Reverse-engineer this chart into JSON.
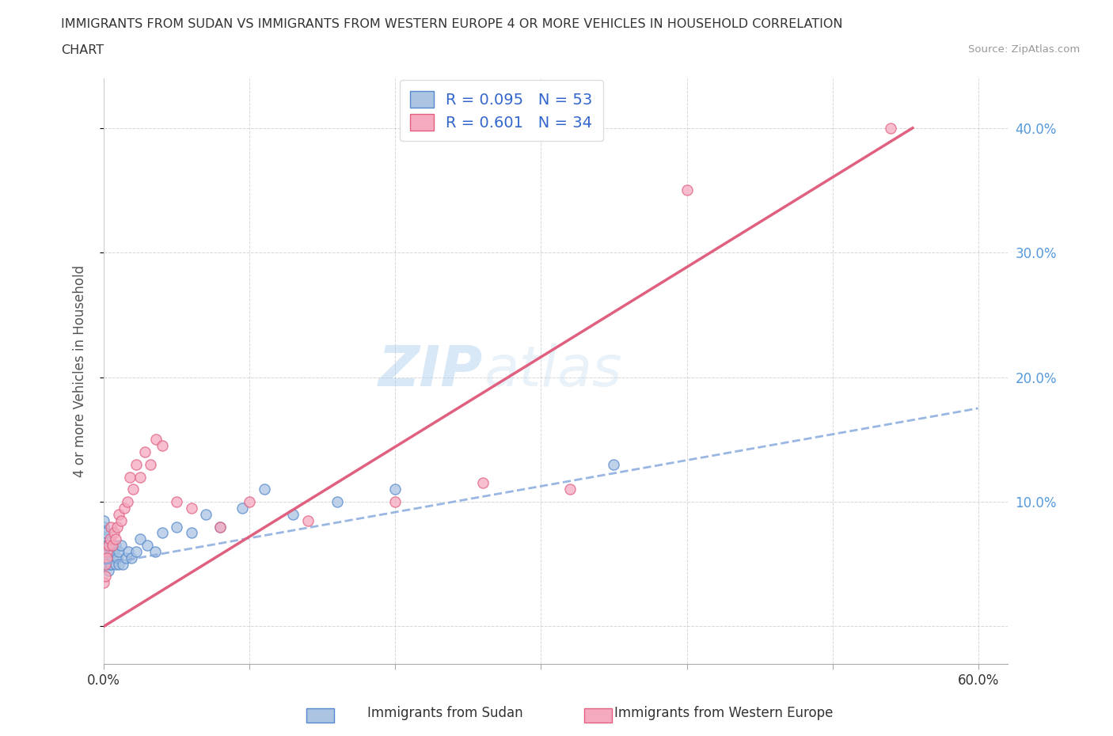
{
  "title_line1": "IMMIGRANTS FROM SUDAN VS IMMIGRANTS FROM WESTERN EUROPE 4 OR MORE VEHICLES IN HOUSEHOLD CORRELATION",
  "title_line2": "CHART",
  "source": "Source: ZipAtlas.com",
  "ylabel": "4 or more Vehicles in Household",
  "xlim": [
    0.0,
    0.62
  ],
  "ylim": [
    -0.03,
    0.44
  ],
  "x_ticks": [
    0.0,
    0.1,
    0.2,
    0.3,
    0.4,
    0.5,
    0.6
  ],
  "x_tick_labels": [
    "0.0%",
    "",
    "",
    "",
    "",
    "",
    "60.0%"
  ],
  "y_ticks": [
    0.0,
    0.1,
    0.2,
    0.3,
    0.4
  ],
  "y_tick_labels_right": [
    "",
    "10.0%",
    "20.0%",
    "30.0%",
    "40.0%"
  ],
  "R_sudan": 0.095,
  "N_sudan": 53,
  "R_western_europe": 0.601,
  "N_western_europe": 34,
  "sudan_color": "#aac4e2",
  "western_europe_color": "#f5aabf",
  "sudan_edge_color": "#5588cc",
  "western_europe_edge_color": "#e06080",
  "sudan_line_color": "#88aadd",
  "western_europe_line_color": "#e06080",
  "sudan_scatter_x": [
    0.0,
    0.0,
    0.0,
    0.0,
    0.0,
    0.0,
    0.0,
    0.0,
    0.001,
    0.001,
    0.001,
    0.001,
    0.001,
    0.001,
    0.002,
    0.002,
    0.002,
    0.002,
    0.003,
    0.003,
    0.003,
    0.004,
    0.004,
    0.005,
    0.005,
    0.006,
    0.006,
    0.007,
    0.008,
    0.008,
    0.009,
    0.01,
    0.01,
    0.012,
    0.013,
    0.015,
    0.017,
    0.019,
    0.022,
    0.025,
    0.03,
    0.035,
    0.04,
    0.05,
    0.06,
    0.07,
    0.08,
    0.095,
    0.11,
    0.13,
    0.16,
    0.2,
    0.35
  ],
  "sudan_scatter_y": [
    0.05,
    0.06,
    0.065,
    0.07,
    0.075,
    0.08,
    0.08,
    0.085,
    0.05,
    0.055,
    0.06,
    0.065,
    0.07,
    0.075,
    0.05,
    0.055,
    0.06,
    0.065,
    0.045,
    0.055,
    0.065,
    0.05,
    0.06,
    0.05,
    0.06,
    0.055,
    0.06,
    0.06,
    0.05,
    0.065,
    0.055,
    0.05,
    0.06,
    0.065,
    0.05,
    0.055,
    0.06,
    0.055,
    0.06,
    0.07,
    0.065,
    0.06,
    0.075,
    0.08,
    0.075,
    0.09,
    0.08,
    0.095,
    0.11,
    0.09,
    0.1,
    0.11,
    0.13
  ],
  "western_europe_scatter_x": [
    0.0,
    0.001,
    0.001,
    0.002,
    0.002,
    0.003,
    0.004,
    0.005,
    0.006,
    0.007,
    0.008,
    0.009,
    0.01,
    0.012,
    0.014,
    0.016,
    0.018,
    0.02,
    0.022,
    0.025,
    0.028,
    0.032,
    0.036,
    0.04,
    0.05,
    0.06,
    0.08,
    0.1,
    0.14,
    0.2,
    0.26,
    0.32,
    0.4,
    0.54
  ],
  "western_europe_scatter_y": [
    0.035,
    0.05,
    0.04,
    0.06,
    0.055,
    0.065,
    0.07,
    0.08,
    0.065,
    0.075,
    0.07,
    0.08,
    0.09,
    0.085,
    0.095,
    0.1,
    0.12,
    0.11,
    0.13,
    0.12,
    0.14,
    0.13,
    0.15,
    0.145,
    0.1,
    0.095,
    0.08,
    0.1,
    0.085,
    0.1,
    0.115,
    0.11,
    0.35,
    0.4
  ],
  "watermark_zip": "ZIP",
  "watermark_atlas": "atlas",
  "background_color": "#ffffff",
  "grid_color": "#bbbbbb",
  "title_color": "#333333",
  "axis_label_color": "#555555",
  "tick_label_color_right": "#5599dd",
  "legend_R_color": "#3366cc",
  "legend_box_sudan": "#aac4e2",
  "legend_box_western_europe": "#f5aabf"
}
